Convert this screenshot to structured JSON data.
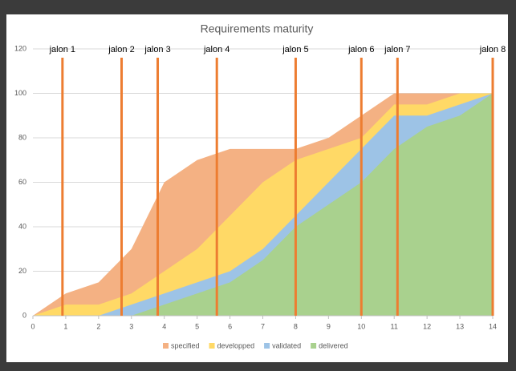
{
  "chart_data": {
    "type": "area",
    "title": "Requirements maturity",
    "x": [
      0,
      1,
      2,
      3,
      4,
      5,
      6,
      7,
      8,
      9,
      10,
      11,
      12,
      13,
      14
    ],
    "series": [
      {
        "name": "specified",
        "color": "#f4b183",
        "values": [
          0,
          10,
          15,
          30,
          60,
          70,
          75,
          75,
          75,
          80,
          90,
          100,
          100,
          100,
          100
        ]
      },
      {
        "name": "developped",
        "color": "#ffd966",
        "values": [
          0,
          5,
          5,
          10,
          20,
          30,
          45,
          60,
          70,
          75,
          80,
          95,
          95,
          100,
          100
        ]
      },
      {
        "name": "validated",
        "color": "#9dc3e6",
        "values": [
          0,
          0,
          0,
          5,
          10,
          15,
          20,
          30,
          45,
          60,
          75,
          90,
          90,
          95,
          100
        ]
      },
      {
        "name": "delivered",
        "color": "#a9d18e",
        "values": [
          0,
          0,
          0,
          0,
          5,
          10,
          15,
          25,
          40,
          50,
          60,
          75,
          85,
          90,
          100
        ]
      }
    ],
    "milestones": [
      {
        "label": "jalon 1",
        "x": 0.9
      },
      {
        "label": "jalon 2",
        "x": 2.7
      },
      {
        "label": "jalon 3",
        "x": 3.8
      },
      {
        "label": "jalon 4",
        "x": 5.6
      },
      {
        "label": "jalon 5",
        "x": 8.0
      },
      {
        "label": "jalon 6",
        "x": 10.0
      },
      {
        "label": "jalon 7",
        "x": 11.1
      },
      {
        "label": "jalon 8",
        "x": 14.0
      }
    ],
    "milestone_color": "#ed7d31",
    "xlim": [
      0,
      14
    ],
    "xticks": [
      0,
      1,
      2,
      3,
      4,
      5,
      6,
      7,
      8,
      9,
      10,
      11,
      12,
      13,
      14
    ],
    "ylim": [
      0,
      120
    ],
    "yticks": [
      0,
      20,
      40,
      60,
      80,
      100,
      120
    ],
    "grid": true,
    "legend": "bottom"
  }
}
